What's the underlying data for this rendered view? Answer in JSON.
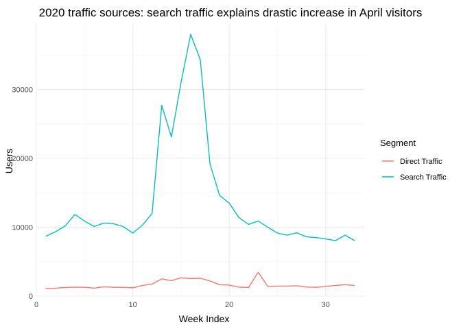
{
  "chart_data": {
    "type": "line",
    "title": "2020 traffic sources: search traffic explains drastic increase in April visitors",
    "xlabel": "Week Index",
    "ylabel": "Users",
    "xlim": [
      0,
      34
    ],
    "ylim": [
      0,
      39500
    ],
    "xticks": [
      0,
      10,
      20,
      30
    ],
    "yticks": [
      0,
      10000,
      20000,
      30000
    ],
    "grid": true,
    "legend": {
      "title": "Segment",
      "position": "right"
    },
    "x": [
      1,
      2,
      3,
      4,
      5,
      6,
      7,
      8,
      9,
      10,
      11,
      12,
      13,
      14,
      15,
      16,
      17,
      18,
      19,
      20,
      21,
      22,
      23,
      24,
      25,
      26,
      27,
      28,
      29,
      30,
      31,
      32,
      33
    ],
    "series": [
      {
        "name": "Direct Traffic",
        "color": "#F8766D",
        "values": [
          1100,
          1150,
          1250,
          1300,
          1280,
          1150,
          1350,
          1280,
          1280,
          1200,
          1550,
          1750,
          2500,
          2250,
          2650,
          2550,
          2600,
          2200,
          1650,
          1600,
          1300,
          1250,
          3450,
          1400,
          1450,
          1450,
          1500,
          1320,
          1280,
          1400,
          1550,
          1650,
          1550
        ]
      },
      {
        "name": "Search Traffic",
        "color": "#00BFC4",
        "values": [
          8700,
          9350,
          10200,
          11850,
          10900,
          10100,
          10600,
          10500,
          10100,
          9150,
          10300,
          12000,
          27700,
          23100,
          31000,
          38000,
          34300,
          19200,
          14600,
          13500,
          11400,
          10400,
          10900,
          10000,
          9150,
          8850,
          9200,
          8600,
          8500,
          8300,
          8050,
          8850,
          8050
        ]
      }
    ]
  }
}
